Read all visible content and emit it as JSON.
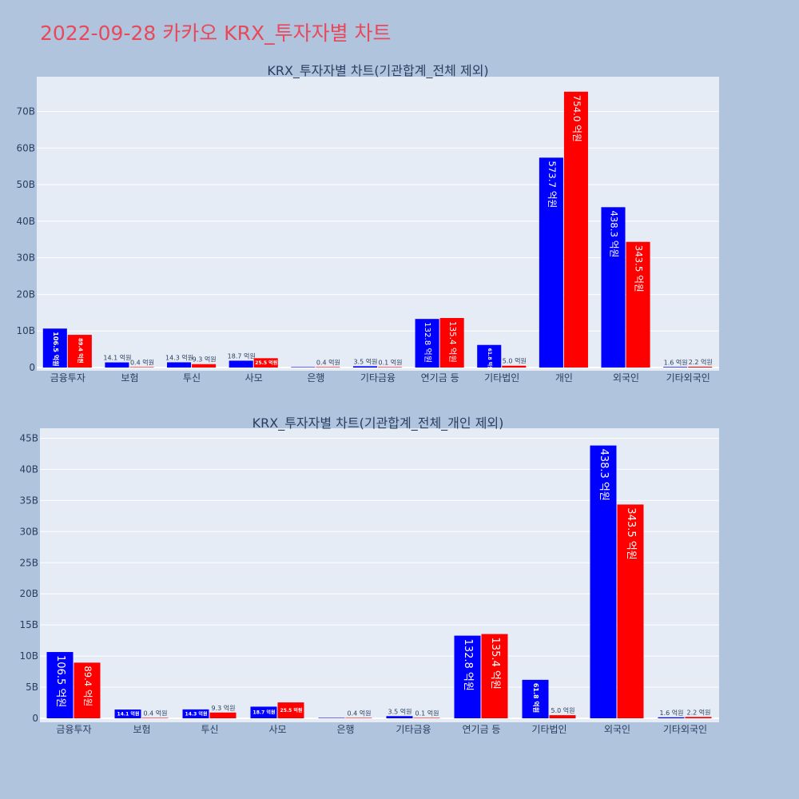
{
  "title": "2022-09-28 카카오 KRX_투자자별 차트",
  "colors": {
    "series_a": "#0000ff",
    "series_b": "#ff0000",
    "plot_bg": "#e5ecf6",
    "page_bg": "#b0c4de",
    "title": "#e8495a"
  },
  "chart_data": [
    {
      "type": "bar",
      "title": "KRX_투자자별 차트(기관합계_전체 제외)",
      "categories": [
        "금융투자",
        "보험",
        "투신",
        "사모",
        "은행",
        "기타금융",
        "연기금 등",
        "기타법인",
        "개인",
        "외국인",
        "기타외국인"
      ],
      "series": [
        {
          "values": [
            10.65,
            1.41,
            1.43,
            1.87,
            0,
            0.35,
            13.28,
            6.18,
            57.37,
            43.83,
            0.16
          ],
          "labels": [
            "106.5 억원",
            "14.1 억원",
            "14.3 억원",
            "18.7 억원",
            "",
            "3.5 억원",
            "132.8 억원",
            "61.8 억원",
            "573.7 억원",
            "438.3 억원",
            "1.6 억원"
          ]
        },
        {
          "values": [
            8.94,
            0.04,
            0.93,
            2.55,
            0.04,
            0.01,
            13.54,
            0.5,
            75.4,
            34.35,
            0.22
          ],
          "labels": [
            "89.4 억원",
            "0.4 억원",
            "9.3 억원",
            "25.5 억원",
            "0.4 억원",
            "0.1 억원",
            "135.4 억원",
            "5.0 억원",
            "754.0 억원",
            "343.5 억원",
            "2.2 억원"
          ]
        }
      ],
      "yticks": [
        "0",
        "10B",
        "20B",
        "30B",
        "40B",
        "50B",
        "60B",
        "70B"
      ],
      "ylim": [
        0,
        79.5
      ],
      "grid": true
    },
    {
      "type": "bar",
      "title": "KRX_투자자별 차트(기관합계_전체_개인 제외)",
      "categories": [
        "금융투자",
        "보험",
        "투신",
        "사모",
        "은행",
        "기타금융",
        "연기금 등",
        "기타법인",
        "외국인",
        "기타외국인"
      ],
      "series": [
        {
          "values": [
            10.65,
            1.41,
            1.43,
            1.87,
            0,
            0.35,
            13.28,
            6.18,
            43.83,
            0.16
          ],
          "labels": [
            "106.5 억원",
            "14.1 억원",
            "14.3 억원",
            "18.7 억원",
            "",
            "3.5 억원",
            "132.8 억원",
            "61.8 억원",
            "438.3 억원",
            "1.6 억원"
          ]
        },
        {
          "values": [
            8.94,
            0.04,
            0.93,
            2.55,
            0.04,
            0.01,
            13.54,
            0.5,
            34.35,
            0.22
          ],
          "labels": [
            "89.4 억원",
            "0.4 억원",
            "9.3 억원",
            "25.5 억원",
            "0.4 억원",
            "0.1 억원",
            "135.4 억원",
            "5.0 억원",
            "343.5 억원",
            "2.2 억원"
          ]
        }
      ],
      "yticks": [
        "0",
        "5B",
        "10B",
        "15B",
        "20B",
        "25B",
        "30B",
        "35B",
        "40B",
        "45B"
      ],
      "ylim": [
        0,
        46.6
      ],
      "grid": true
    }
  ]
}
